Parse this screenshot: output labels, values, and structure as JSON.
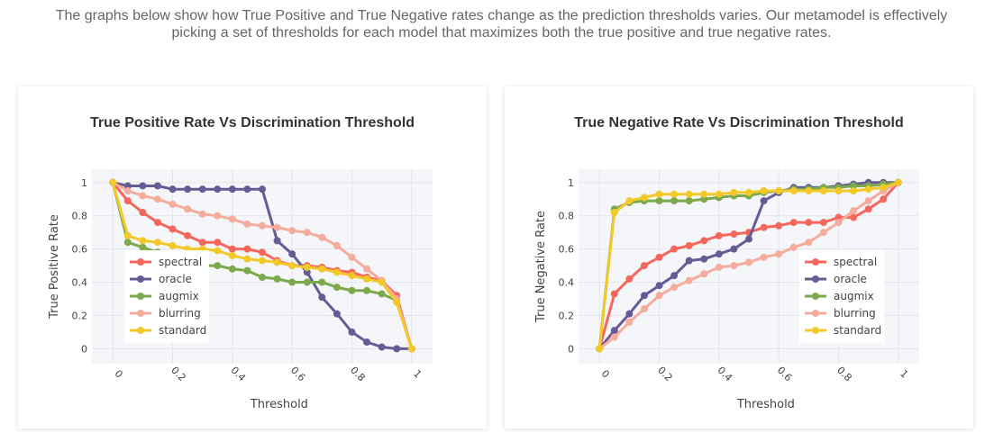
{
  "intro_text": "The graphs below show how True Positive and True Negative rates change as the prediction thresholds varies. Our metamodel is effectively picking a set of thresholds for each model that maximizes both the true positive and true negative rates.",
  "colors": {
    "spectral": "#f4675d",
    "oracle": "#675b96",
    "augmix": "#7ba94b",
    "blurring": "#f5ac9c",
    "standard": "#f2c928",
    "plot_bg": "#f5f6f9",
    "grid": "#e4e6ee"
  },
  "chart_data": [
    {
      "type": "line",
      "title": "True Positive Rate Vs Discrimination Threshold",
      "xlabel": "Threshold",
      "ylabel": "True Positive Rate",
      "xlim": [
        -0.07,
        1.07
      ],
      "ylim": [
        -0.09,
        1.08
      ],
      "x_ticks": [
        0,
        0.2,
        0.4,
        0.6,
        0.8,
        1
      ],
      "x_tick_labels": [
        "0",
        "0.2",
        "0.4",
        "0.6",
        "0.8",
        "1"
      ],
      "y_ticks": [
        0,
        0.2,
        0.4,
        0.6,
        0.8,
        1
      ],
      "y_tick_labels": [
        "0",
        "0.2",
        "0.4",
        "0.6",
        "0.8",
        "1"
      ],
      "grid": true,
      "legend_position": "left-inside",
      "x": [
        0,
        0.05,
        0.1,
        0.15,
        0.2,
        0.25,
        0.3,
        0.35,
        0.4,
        0.45,
        0.5,
        0.55,
        0.6,
        0.65,
        0.7,
        0.75,
        0.8,
        0.85,
        0.9,
        0.95,
        1
      ],
      "series": [
        {
          "name": "spectral",
          "values": [
            1,
            0.89,
            0.82,
            0.76,
            0.72,
            0.68,
            0.64,
            0.64,
            0.6,
            0.6,
            0.58,
            0.53,
            0.5,
            0.5,
            0.49,
            0.47,
            0.46,
            0.43,
            0.41,
            0.32,
            0
          ]
        },
        {
          "name": "oracle",
          "values": [
            1,
            0.98,
            0.98,
            0.98,
            0.96,
            0.96,
            0.96,
            0.96,
            0.96,
            0.96,
            0.96,
            0.65,
            0.57,
            0.46,
            0.31,
            0.21,
            0.1,
            0.04,
            0.01,
            0,
            0
          ]
        },
        {
          "name": "augmix",
          "values": [
            1,
            0.64,
            0.61,
            0.58,
            0.54,
            0.51,
            0.5,
            0.5,
            0.48,
            0.47,
            0.43,
            0.42,
            0.4,
            0.4,
            0.4,
            0.37,
            0.35,
            0.35,
            0.33,
            0.29,
            0
          ]
        },
        {
          "name": "blurring",
          "values": [
            1,
            0.95,
            0.92,
            0.9,
            0.87,
            0.84,
            0.81,
            0.8,
            0.78,
            0.75,
            0.74,
            0.73,
            0.71,
            0.7,
            0.67,
            0.62,
            0.55,
            0.48,
            0.41,
            0.3,
            0
          ]
        },
        {
          "name": "standard",
          "values": [
            1,
            0.68,
            0.65,
            0.64,
            0.62,
            0.6,
            0.6,
            0.59,
            0.56,
            0.54,
            0.53,
            0.52,
            0.5,
            0.49,
            0.48,
            0.46,
            0.44,
            0.42,
            0.4,
            0.28,
            0
          ]
        }
      ]
    },
    {
      "type": "line",
      "title": "True Negative Rate Vs Discrimination Threshold",
      "xlabel": "Threshold",
      "ylabel": "True Negative Rate",
      "xlim": [
        -0.07,
        1.07
      ],
      "ylim": [
        -0.09,
        1.08
      ],
      "x_ticks": [
        0,
        0.2,
        0.4,
        0.6,
        0.8,
        1
      ],
      "x_tick_labels": [
        "0",
        "0.2",
        "0.4",
        "0.6",
        "0.8",
        "1"
      ],
      "y_ticks": [
        0,
        0.2,
        0.4,
        0.6,
        0.8,
        1
      ],
      "y_tick_labels": [
        "0",
        "0.2",
        "0.4",
        "0.6",
        "0.8",
        "1"
      ],
      "grid": true,
      "legend_position": "right-inside",
      "x": [
        0,
        0.05,
        0.1,
        0.15,
        0.2,
        0.25,
        0.3,
        0.35,
        0.4,
        0.45,
        0.5,
        0.55,
        0.6,
        0.65,
        0.7,
        0.75,
        0.8,
        0.85,
        0.9,
        0.95,
        1
      ],
      "series": [
        {
          "name": "spectral",
          "values": [
            0,
            0.33,
            0.42,
            0.5,
            0.55,
            0.6,
            0.62,
            0.65,
            0.68,
            0.69,
            0.7,
            0.73,
            0.74,
            0.76,
            0.76,
            0.76,
            0.79,
            0.79,
            0.84,
            0.9,
            1
          ]
        },
        {
          "name": "oracle",
          "values": [
            0,
            0.11,
            0.21,
            0.32,
            0.38,
            0.44,
            0.53,
            0.54,
            0.57,
            0.6,
            0.66,
            0.89,
            0.94,
            0.97,
            0.97,
            0.97,
            0.98,
            0.99,
            1,
            1,
            1
          ]
        },
        {
          "name": "augmix",
          "values": [
            0,
            0.84,
            0.88,
            0.89,
            0.89,
            0.89,
            0.89,
            0.9,
            0.91,
            0.92,
            0.92,
            0.94,
            0.95,
            0.96,
            0.96,
            0.97,
            0.97,
            0.98,
            0.98,
            0.99,
            1
          ]
        },
        {
          "name": "blurring",
          "values": [
            0,
            0.07,
            0.16,
            0.24,
            0.32,
            0.37,
            0.41,
            0.45,
            0.49,
            0.5,
            0.52,
            0.55,
            0.57,
            0.61,
            0.64,
            0.7,
            0.76,
            0.83,
            0.89,
            0.95,
            1
          ]
        },
        {
          "name": "standard",
          "values": [
            0,
            0.82,
            0.89,
            0.91,
            0.93,
            0.93,
            0.93,
            0.93,
            0.93,
            0.94,
            0.94,
            0.95,
            0.95,
            0.95,
            0.95,
            0.95,
            0.95,
            0.95,
            0.96,
            0.97,
            1
          ]
        }
      ]
    }
  ]
}
